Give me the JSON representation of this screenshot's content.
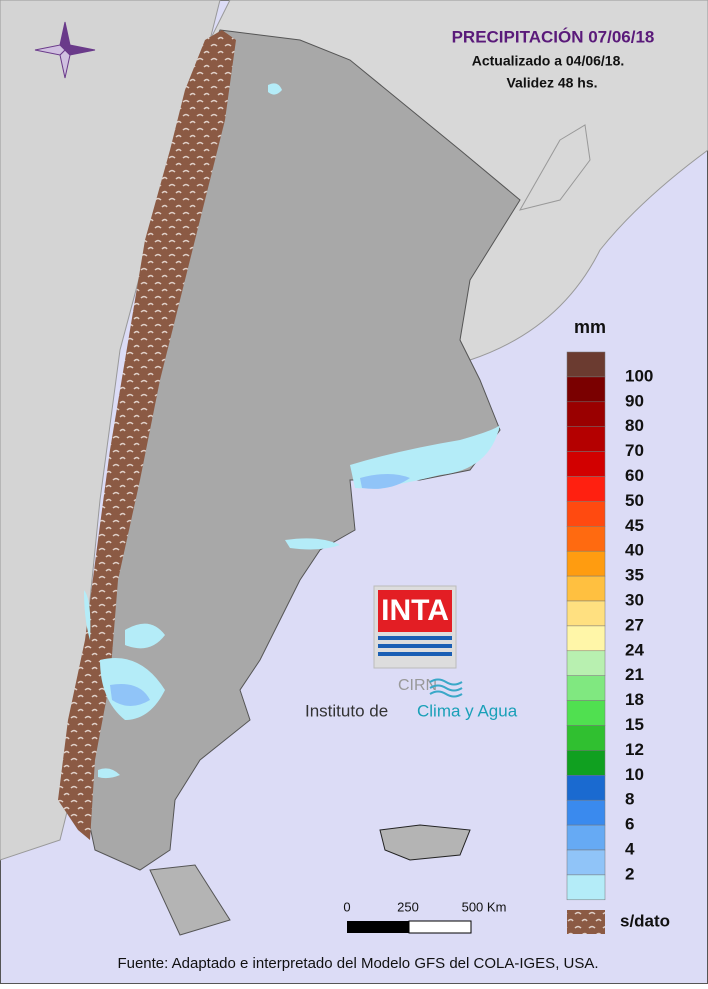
{
  "header": {
    "title": "PRECIPITACIÓN 07/06/18",
    "updated": "Actualizado a 04/06/18.",
    "validity": "Validez 48 hs."
  },
  "legend": {
    "unit": "mm",
    "colors": [
      "#6b3b30",
      "#7a0000",
      "#9a0000",
      "#b40000",
      "#d20000",
      "#ff2010",
      "#ff4a10",
      "#ff6a10",
      "#ff9c10",
      "#ffc040",
      "#ffe080",
      "#fff6a8",
      "#b8f0b0",
      "#80e880",
      "#50e050",
      "#30c030",
      "#10a020",
      "#1a6ad0",
      "#3a8aee",
      "#66aaf4",
      "#90c4f8",
      "#b4ecf8"
    ],
    "labels": [
      "100",
      "90",
      "80",
      "70",
      "60",
      "50",
      "45",
      "40",
      "35",
      "30",
      "27",
      "24",
      "21",
      "18",
      "15",
      "12",
      "10",
      "8",
      "6",
      "4",
      "2"
    ],
    "no_data": "s/dato"
  },
  "scale_bar": {
    "labels": [
      "0",
      "250",
      "500 Km"
    ]
  },
  "logo": {
    "acronym": "INTA",
    "subunit": "CIRN",
    "institute_prefix": "Instituto de",
    "institute_name": "Clima y Agua"
  },
  "footer": "Fuente: Adaptado e interpretado del Modelo GFS del COLA-IGES, USA."
}
